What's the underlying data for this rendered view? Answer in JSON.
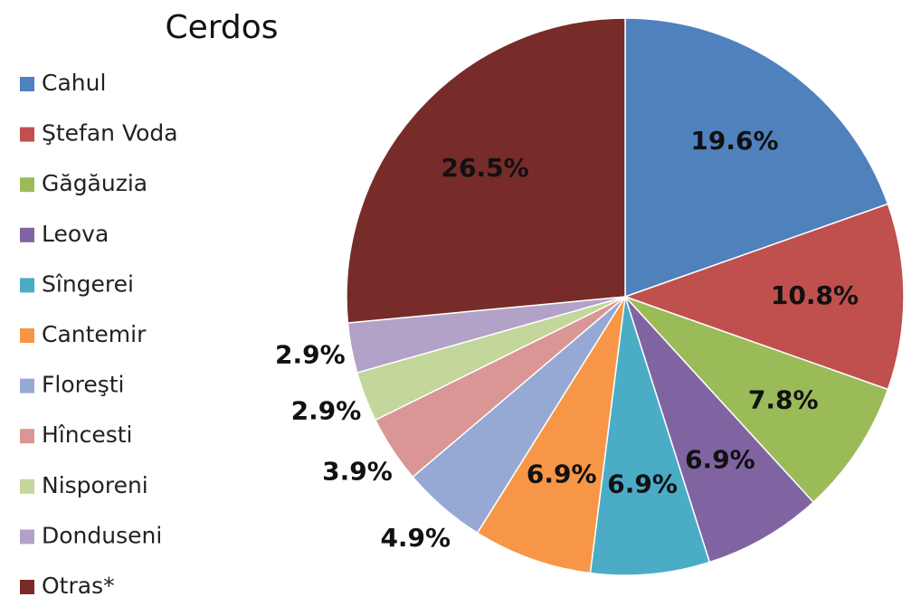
{
  "chart_data": {
    "type": "pie",
    "title": "Cerdos",
    "categories": [
      "Cahul",
      "Ştefan Voda",
      "Găgăuzia",
      "Leova",
      "Sîngerei",
      "Cantemir",
      "Floreşti",
      "Hîncesti",
      "Nisporeni",
      "Donduseni",
      "Otras*"
    ],
    "values": [
      19.6,
      10.8,
      7.8,
      6.9,
      6.9,
      6.9,
      4.9,
      3.9,
      2.9,
      2.9,
      26.5
    ],
    "value_labels": [
      "19.6%",
      "10.8%",
      "7.8%",
      "6.9%",
      "6.9%",
      "6.9%",
      "4.9%",
      "3.9%",
      "2.9%",
      "2.9%",
      "26.5%"
    ],
    "colors": [
      "#4f81bd",
      "#c0504d",
      "#9bbb59",
      "#8064a2",
      "#4bacc6",
      "#f79646",
      "#95a9d4",
      "#d99694",
      "#c3d69b",
      "#b3a2c7",
      "#772c2a"
    ],
    "legend": "left"
  }
}
